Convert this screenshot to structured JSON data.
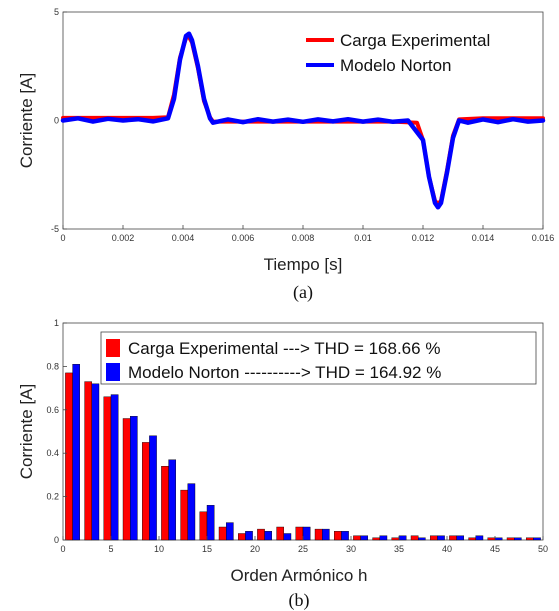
{
  "chart_data": [
    {
      "type": "line",
      "xlabel": "Tiempo [s]",
      "ylabel": "Corriente [A]",
      "caption": "(a)",
      "xlim": [
        0,
        0.016
      ],
      "ylim": [
        -5,
        5
      ],
      "xticks": [
        0,
        0.002,
        0.004,
        0.006,
        0.008,
        0.01,
        0.012,
        0.014,
        0.016
      ],
      "xtick_labels": [
        "0",
        "0.002",
        "0.004",
        "0.006",
        "0.008",
        "0.01",
        "0.012",
        "0.014",
        "0.016"
      ],
      "yticks": [
        -5,
        0,
        5
      ],
      "ytick_labels": [
        "-5",
        "0",
        "5"
      ],
      "grid": false,
      "legend_position": "top-right",
      "series": [
        {
          "name": "Carga Experimental",
          "color": "#ff0000",
          "x": [
            0,
            0.001,
            0.002,
            0.003,
            0.0035,
            0.0037,
            0.0039,
            0.0041,
            0.0042,
            0.0043,
            0.0045,
            0.0047,
            0.0049,
            0.005,
            0.006,
            0.007,
            0.008,
            0.009,
            0.01,
            0.011,
            0.0118,
            0.012,
            0.0122,
            0.0124,
            0.0125,
            0.0126,
            0.0128,
            0.013,
            0.0132,
            0.014,
            0.015,
            0.016
          ],
          "y": [
            0.12,
            0.12,
            0.12,
            0.12,
            0.15,
            1.2,
            2.9,
            3.8,
            3.85,
            3.6,
            2.4,
            0.9,
            0.15,
            -0.05,
            -0.05,
            -0.05,
            -0.05,
            -0.05,
            -0.05,
            -0.05,
            -0.1,
            -0.9,
            -2.6,
            -3.7,
            -3.85,
            -3.7,
            -2.3,
            -0.7,
            0.05,
            0.1,
            0.1,
            0.1
          ]
        },
        {
          "name": "Modelo Norton",
          "color": "#0000ff",
          "x": [
            0,
            0.0005,
            0.001,
            0.0015,
            0.002,
            0.0025,
            0.003,
            0.0035,
            0.0037,
            0.0039,
            0.0041,
            0.0042,
            0.0043,
            0.0045,
            0.0047,
            0.0049,
            0.005,
            0.0055,
            0.006,
            0.0065,
            0.007,
            0.0075,
            0.008,
            0.0085,
            0.009,
            0.0095,
            0.01,
            0.0105,
            0.011,
            0.0115,
            0.012,
            0.0122,
            0.0124,
            0.0125,
            0.0126,
            0.0128,
            0.013,
            0.0132,
            0.0135,
            0.014,
            0.0145,
            0.015,
            0.0155,
            0.016
          ],
          "y": [
            0.0,
            0.1,
            -0.05,
            0.08,
            0.0,
            0.06,
            -0.04,
            0.1,
            1.0,
            2.8,
            3.9,
            4.0,
            3.7,
            2.5,
            1.0,
            0.1,
            -0.1,
            0.05,
            -0.08,
            0.06,
            -0.05,
            0.04,
            -0.06,
            0.05,
            -0.04,
            0.06,
            -0.05,
            0.04,
            -0.06,
            0.0,
            -0.9,
            -2.6,
            -3.8,
            -4.0,
            -3.8,
            -2.4,
            -0.8,
            0.0,
            -0.1,
            0.05,
            -0.08,
            0.06,
            -0.05,
            0.0
          ]
        }
      ]
    },
    {
      "type": "bar",
      "xlabel": "Orden Armónico h",
      "ylabel": "Corriente [A]",
      "caption": "(b)",
      "xlim": [
        0,
        50
      ],
      "ylim": [
        0,
        1
      ],
      "xticks": [
        0,
        5,
        10,
        15,
        20,
        25,
        30,
        35,
        40,
        45,
        50
      ],
      "xtick_labels": [
        "0",
        "5",
        "10",
        "15",
        "20",
        "25",
        "30",
        "35",
        "40",
        "45",
        "50"
      ],
      "yticks": [
        0,
        0.2,
        0.4,
        0.6,
        0.8,
        1
      ],
      "ytick_labels": [
        "0",
        "0.2",
        "0.4",
        "0.6",
        "0.8",
        "1"
      ],
      "grid": false,
      "legend_position": "top-right",
      "categories": [
        1,
        3,
        5,
        7,
        9,
        11,
        13,
        15,
        17,
        19,
        21,
        23,
        25,
        27,
        29,
        31,
        33,
        35,
        37,
        39,
        41,
        43,
        45,
        47,
        49
      ],
      "series": [
        {
          "name": "Carga Experimental ---> THD = 168.66 %",
          "color": "#ff0000",
          "values": [
            0.77,
            0.73,
            0.66,
            0.56,
            0.45,
            0.34,
            0.23,
            0.13,
            0.06,
            0.03,
            0.05,
            0.06,
            0.06,
            0.05,
            0.04,
            0.02,
            0.01,
            0.01,
            0.02,
            0.02,
            0.02,
            0.01,
            0.01,
            0.01,
            0.01
          ]
        },
        {
          "name": "Modelo Norton ----------> THD = 164.92 %",
          "color": "#0000ff",
          "values": [
            0.81,
            0.72,
            0.67,
            0.57,
            0.48,
            0.37,
            0.26,
            0.16,
            0.08,
            0.04,
            0.04,
            0.03,
            0.06,
            0.05,
            0.04,
            0.02,
            0.02,
            0.02,
            0.01,
            0.02,
            0.02,
            0.02,
            0.01,
            0.01,
            0.01
          ]
        }
      ]
    }
  ]
}
